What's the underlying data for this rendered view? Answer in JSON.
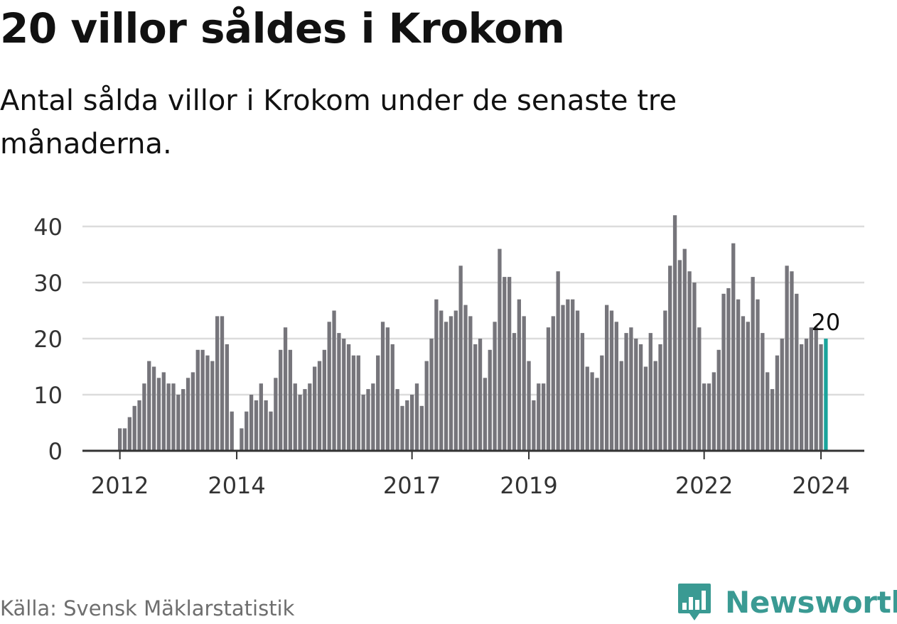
{
  "title": "20 villor såldes i Krokom",
  "subtitle": "Antal sålda villor i Krokom under de senaste tre månaderna.",
  "source": "Källa: Svensk Mäklarstatistik",
  "brand": {
    "name": "Newsworthy",
    "icon": "newsworthy-bar-chart-icon",
    "color": "#3a9a93"
  },
  "colors": {
    "bar": "#76757b",
    "highlight": "#1aa39b",
    "grid": "#dcdcdc",
    "axis": "#333333"
  },
  "chart_data": {
    "type": "bar",
    "title": "20 villor såldes i Krokom",
    "xlabel": "",
    "ylabel": "",
    "ylim": [
      0,
      40
    ],
    "yticks": [
      0,
      10,
      20,
      30,
      40
    ],
    "ytick_labels": [
      "0",
      "10",
      "20",
      "30",
      "40"
    ],
    "grid": true,
    "start": "2012-01",
    "x_ticks": [
      {
        "label": "2012",
        "index": 0
      },
      {
        "label": "2014",
        "index": 24
      },
      {
        "label": "2017",
        "index": 60
      },
      {
        "label": "2019",
        "index": 84
      },
      {
        "label": "2022",
        "index": 120
      },
      {
        "label": "2024",
        "index": 144
      }
    ],
    "values": [
      4,
      4,
      6,
      8,
      9,
      12,
      16,
      15,
      13,
      14,
      12,
      12,
      10,
      11,
      13,
      14,
      18,
      18,
      17,
      16,
      24,
      24,
      19,
      7,
      0,
      4,
      7,
      10,
      9,
      12,
      9,
      7,
      13,
      18,
      22,
      18,
      12,
      10,
      11,
      12,
      15,
      16,
      18,
      23,
      25,
      21,
      20,
      19,
      17,
      17,
      10,
      11,
      12,
      17,
      23,
      22,
      19,
      11,
      8,
      9,
      10,
      12,
      8,
      16,
      20,
      27,
      25,
      23,
      24,
      25,
      33,
      26,
      24,
      19,
      20,
      13,
      18,
      23,
      36,
      31,
      31,
      21,
      27,
      24,
      16,
      9,
      12,
      12,
      22,
      24,
      32,
      26,
      27,
      27,
      25,
      21,
      15,
      14,
      13,
      17,
      26,
      25,
      23,
      16,
      21,
      22,
      20,
      19,
      15,
      21,
      16,
      19,
      25,
      33,
      42,
      34,
      36,
      32,
      30,
      22,
      12,
      12,
      14,
      18,
      28,
      29,
      37,
      27,
      24,
      23,
      31,
      27,
      21,
      14,
      11,
      17,
      20,
      33,
      32,
      28,
      19,
      20,
      22,
      22,
      19,
      20
    ],
    "highlight_last": true,
    "last_label": "20"
  }
}
